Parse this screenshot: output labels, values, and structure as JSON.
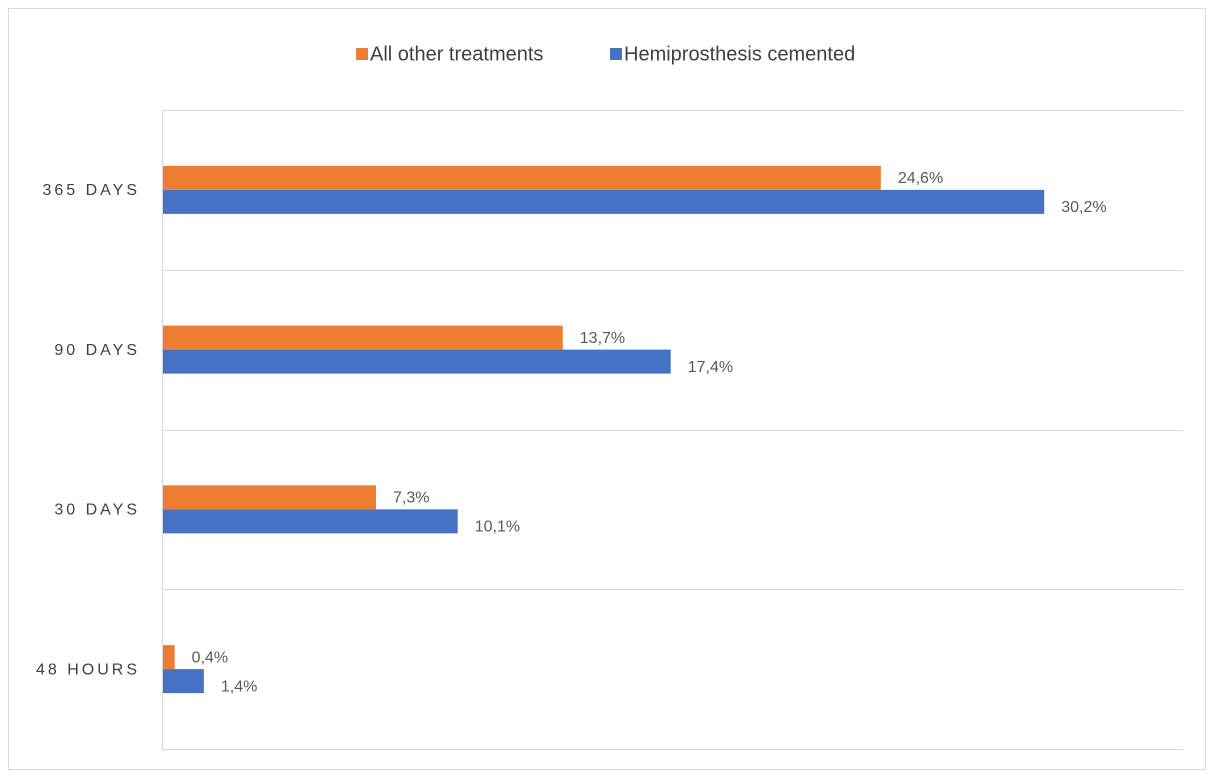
{
  "chart_data": {
    "type": "bar",
    "orientation": "horizontal",
    "categories": [
      "365 DAYS",
      "90 DAYS",
      "30 DAYS",
      "48 HOURS"
    ],
    "series": [
      {
        "name": "All other treatments",
        "color": "#ED7D31",
        "values": [
          24.6,
          13.7,
          7.3,
          0.4
        ],
        "labels": [
          "24,6%",
          "13,7%",
          "7,3%",
          "0,4%"
        ]
      },
      {
        "name": "Hemiprosthesis cemented",
        "color": "#4472C4",
        "values": [
          30.2,
          17.4,
          10.1,
          1.4
        ],
        "labels": [
          "30,2%",
          "17,4%",
          "10,1%",
          "1,4%"
        ]
      }
    ],
    "xlim": [
      0,
      35
    ],
    "grid": true,
    "legend": "top",
    "title": "",
    "xlabel": "",
    "ylabel": ""
  }
}
